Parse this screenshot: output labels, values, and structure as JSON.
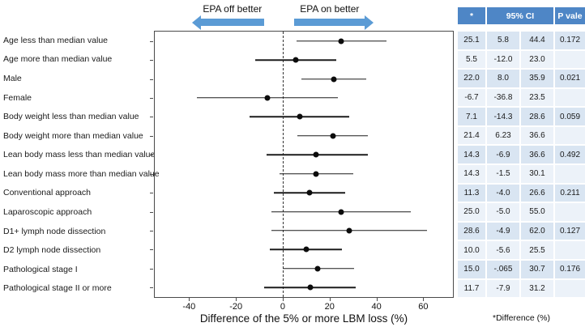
{
  "colors": {
    "accent_blue": "#5b9bd5",
    "table_header_blue": "#4e86c6",
    "row_band_dark": "#d9e5f2",
    "row_band_light": "#ecf2f9"
  },
  "header": {
    "epa_off_label": "EPA off better",
    "epa_on_label": "EPA on better"
  },
  "table": {
    "header_star": "*",
    "header_ci": "95% CI",
    "header_p": "P vale",
    "footnote": "*Difference (%)"
  },
  "chart_data": {
    "type": "scatter",
    "variant": "forest-plot",
    "xlabel": "Difference of the 5% or more LBM loss (%)",
    "xlim": [
      -55,
      73
    ],
    "xticks": [
      -40,
      -20,
      0,
      20,
      40,
      60
    ],
    "zero_line": 0,
    "grid": false,
    "legend": "none",
    "arrows": {
      "epa_off_span": [
        -35,
        -8
      ],
      "epa_on_span": [
        5,
        35
      ]
    },
    "rows": [
      {
        "label": "Age less than median value",
        "est": "25.1",
        "lo": "5.8",
        "hi": "44.4",
        "p": "0.172"
      },
      {
        "label": "Age more than median value",
        "est": "5.5",
        "lo": "-12.0",
        "hi": "23.0",
        "p": ""
      },
      {
        "label": "Male",
        "est": "22.0",
        "lo": "8.0",
        "hi": "35.9",
        "p": "0.021"
      },
      {
        "label": "Female",
        "est": "-6.7",
        "lo": "-36.8",
        "hi": "23.5",
        "p": ""
      },
      {
        "label": "Body weight less than median value",
        "est": "7.1",
        "lo": "-14.3",
        "hi": "28.6",
        "p": "0.059"
      },
      {
        "label": "Body weight more than median value",
        "est": "21.4",
        "lo": "6.23",
        "hi": "36.6",
        "p": ""
      },
      {
        "label": "Lean body mass less than median value",
        "est": "14.3",
        "lo": "-6.9",
        "hi": "36.6",
        "p": "0.492"
      },
      {
        "label": "Lean body mass more than median value",
        "est": "14.3",
        "lo": "-1.5",
        "hi": "30.1",
        "p": ""
      },
      {
        "label": "Conventional approach",
        "est": "11.3",
        "lo": "-4.0",
        "hi": "26.6",
        "p": "0.211"
      },
      {
        "label": "Laparoscopic approach",
        "est": "25.0",
        "lo": "-5.0",
        "hi": "55.0",
        "p": ""
      },
      {
        "label": "D1+ lymph node dissection",
        "est": "28.6",
        "lo": "-4.9",
        "hi": "62.0",
        "p": "0.127"
      },
      {
        "label": "D2 lymph node dissection",
        "est": "10.0",
        "lo": "-5.6",
        "hi": "25.5",
        "p": ""
      },
      {
        "label": "Pathological stage I",
        "est": "15.0",
        "lo": "-.065",
        "hi": "30.7",
        "p": "0.176"
      },
      {
        "label": "Pathological stage II or more",
        "est": "11.7",
        "lo": "-7.9",
        "hi": "31.2",
        "p": ""
      }
    ]
  }
}
